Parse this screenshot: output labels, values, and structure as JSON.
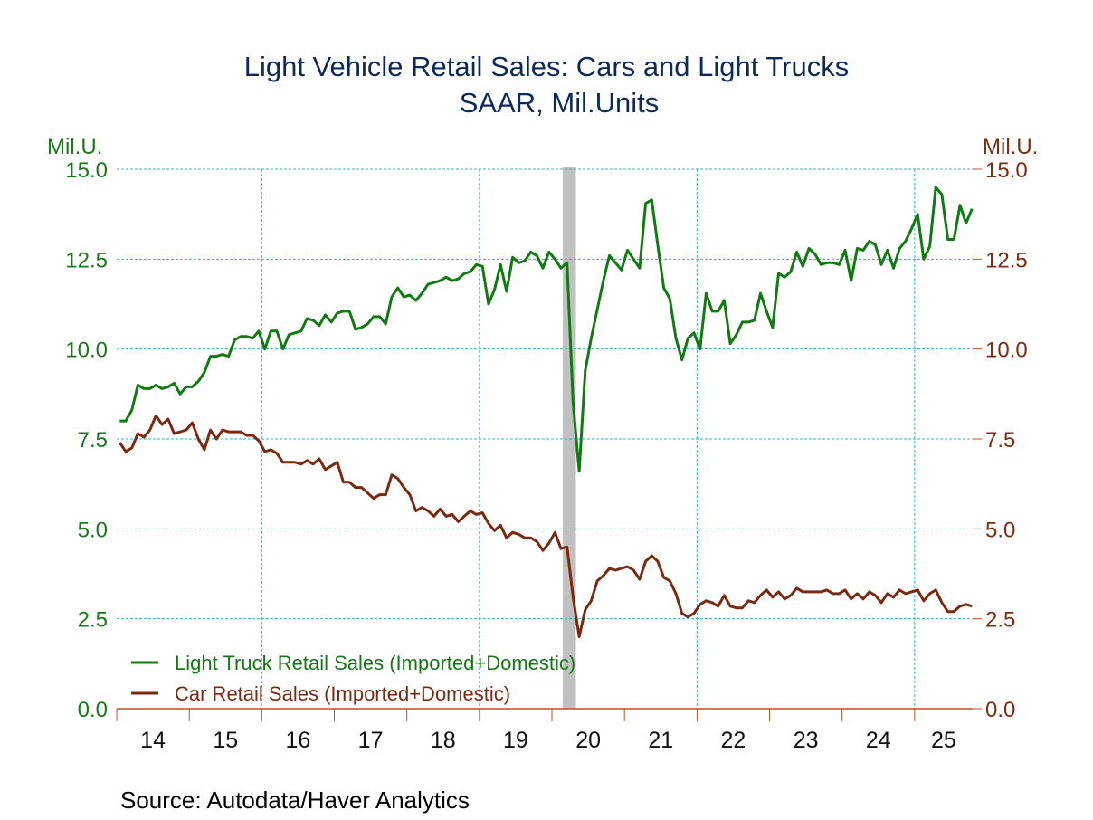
{
  "chart_data": {
    "type": "line",
    "title": "Light Vehicle Retail Sales: Cars and Light Trucks",
    "subtitle": "SAAR, Mil.Units",
    "ylabel_left": "Mil.U.",
    "ylabel_right": "Mil.U.",
    "ylim": [
      0,
      15
    ],
    "yticks": [
      "15.0",
      "12.5",
      "10.0",
      "7.5",
      "5.0",
      "2.5",
      "0.0"
    ],
    "ytick_values": [
      15,
      12.5,
      10,
      7.5,
      5,
      2.5,
      0
    ],
    "xticks": [
      "14",
      "15",
      "16",
      "17",
      "18",
      "19",
      "20",
      "21",
      "22",
      "23",
      "24",
      "25"
    ],
    "x_start": "2014-01",
    "x_frequency": "monthly",
    "x_range_years": [
      2014,
      2025.8
    ],
    "grid": true,
    "legend_position": "bottom-left",
    "recession_shading": {
      "start": 2020.15,
      "end": 2020.33,
      "color": "#c0c0c0"
    },
    "colors": {
      "truck": "#127a12",
      "car": "#7a2a10",
      "grid": "#29b5c8",
      "axis": "#c0501a",
      "title": "#0b2a5a"
    },
    "series": [
      {
        "name": "Light Truck Retail Sales (Imported+Domestic)",
        "key": "truck",
        "values": [
          8.0,
          8.0,
          8.3,
          9.0,
          8.9,
          8.9,
          9.0,
          8.9,
          8.95,
          9.05,
          8.75,
          8.95,
          8.95,
          9.1,
          9.35,
          9.8,
          9.8,
          9.85,
          9.8,
          10.25,
          10.35,
          10.35,
          10.3,
          10.5,
          10.0,
          10.5,
          10.5,
          10.0,
          10.4,
          10.45,
          10.5,
          10.85,
          10.8,
          10.65,
          10.95,
          10.75,
          11.0,
          11.05,
          11.05,
          10.55,
          10.6,
          10.7,
          10.9,
          10.9,
          10.7,
          11.45,
          11.7,
          11.45,
          11.5,
          11.35,
          11.55,
          11.8,
          11.85,
          11.9,
          12.0,
          11.9,
          11.95,
          12.1,
          12.15,
          12.35,
          12.3,
          11.25,
          11.65,
          12.35,
          11.6,
          12.55,
          12.4,
          12.45,
          12.7,
          12.6,
          12.25,
          12.7,
          12.5,
          12.25,
          12.4,
          8.5,
          6.6,
          9.4,
          10.3,
          11.1,
          11.9,
          12.6,
          12.4,
          12.2,
          12.75,
          12.5,
          12.25,
          14.05,
          14.15,
          12.9,
          11.7,
          11.4,
          10.3,
          9.7,
          10.3,
          10.45,
          10.0,
          11.55,
          11.05,
          11.05,
          11.35,
          10.15,
          10.4,
          10.75,
          10.75,
          10.8,
          11.55,
          11.05,
          10.6,
          12.1,
          12.0,
          12.15,
          12.7,
          12.3,
          12.8,
          12.65,
          12.35,
          12.4,
          12.4,
          12.35,
          12.75,
          11.9,
          12.8,
          12.75,
          13.0,
          12.9,
          12.35,
          12.75,
          12.25,
          12.8,
          13.0,
          13.35,
          13.75,
          12.5,
          12.85,
          14.5,
          14.3,
          13.05,
          13.05,
          14.0,
          13.5,
          13.9
        ]
      },
      {
        "name": "Car Retail Sales (Imported+Domestic)",
        "key": "car",
        "values": [
          7.4,
          7.15,
          7.25,
          7.65,
          7.55,
          7.75,
          8.15,
          7.9,
          8.05,
          7.65,
          7.7,
          7.75,
          7.95,
          7.5,
          7.2,
          7.75,
          7.5,
          7.75,
          7.7,
          7.7,
          7.7,
          7.6,
          7.6,
          7.45,
          7.15,
          7.2,
          7.1,
          6.85,
          6.85,
          6.85,
          6.8,
          6.9,
          6.8,
          6.95,
          6.65,
          6.75,
          6.85,
          6.3,
          6.3,
          6.15,
          6.15,
          6.0,
          5.85,
          5.95,
          5.95,
          6.5,
          6.4,
          6.15,
          5.95,
          5.5,
          5.6,
          5.5,
          5.35,
          5.55,
          5.35,
          5.4,
          5.2,
          5.35,
          5.5,
          5.4,
          5.45,
          5.15,
          4.95,
          5.1,
          4.75,
          4.9,
          4.85,
          4.75,
          4.75,
          4.65,
          4.4,
          4.6,
          4.9,
          4.45,
          4.5,
          3.1,
          2.0,
          2.75,
          3.0,
          3.55,
          3.7,
          3.9,
          3.85,
          3.9,
          3.95,
          3.85,
          3.6,
          4.1,
          4.25,
          4.1,
          3.65,
          3.55,
          3.2,
          2.65,
          2.55,
          2.65,
          2.9,
          3.0,
          2.95,
          2.85,
          3.15,
          2.85,
          2.8,
          2.8,
          3.0,
          2.95,
          3.15,
          3.3,
          3.1,
          3.25,
          3.05,
          3.15,
          3.35,
          3.25,
          3.25,
          3.25,
          3.25,
          3.3,
          3.2,
          3.2,
          3.3,
          3.05,
          3.2,
          3.05,
          3.25,
          3.15,
          2.95,
          3.2,
          3.1,
          3.3,
          3.2,
          3.25,
          3.3,
          3.0,
          3.2,
          3.3,
          2.95,
          2.7,
          2.7,
          2.85,
          2.9,
          2.85
        ]
      }
    ]
  },
  "source": "Source:  Autodata/Haver Analytics"
}
